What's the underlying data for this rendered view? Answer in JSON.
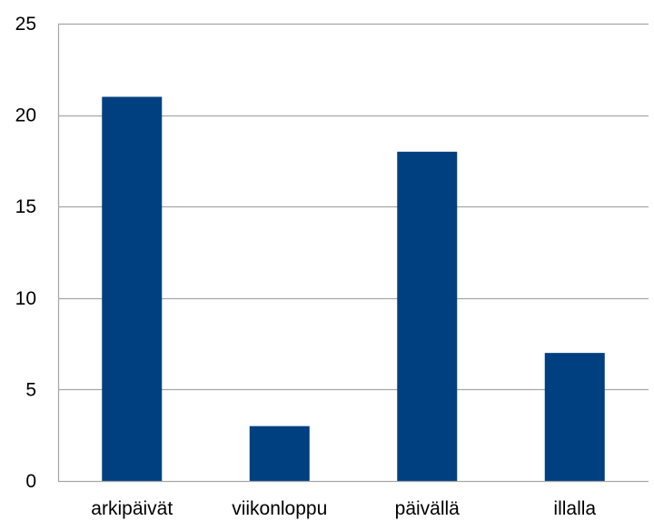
{
  "chart_data": {
    "type": "bar",
    "title": "",
    "xlabel": "",
    "ylabel": "",
    "categories": [
      "arkipäivät",
      "viikonloppu",
      "päivällä",
      "illalla"
    ],
    "values": [
      21,
      3,
      18,
      7
    ],
    "ylim": [
      0,
      25
    ],
    "yticks": [
      0,
      5,
      10,
      15,
      20,
      25
    ],
    "grid": true,
    "legend": "none",
    "colors": {
      "bar": "#004080",
      "grid": "#a6a6a6",
      "axis": "#a6a6a6"
    }
  }
}
